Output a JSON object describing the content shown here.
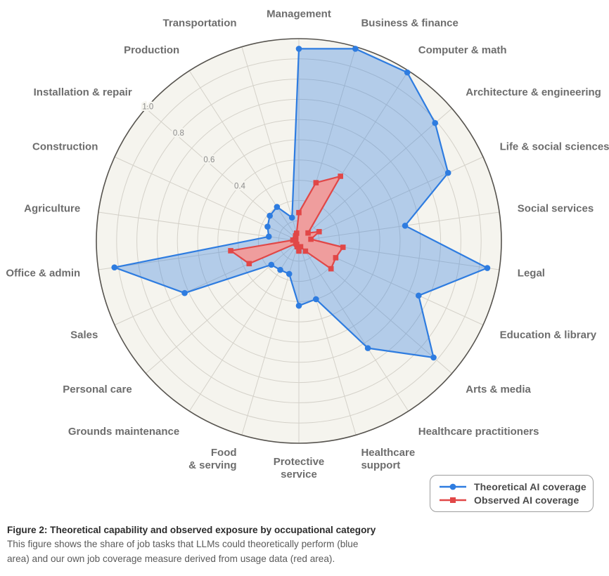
{
  "chart_data": {
    "type": "radar",
    "categories": [
      "Management",
      "Business & finance",
      "Computer & math",
      "Architecture & engineering",
      "Life & social sciences",
      "Social services",
      "Legal",
      "Education & library",
      "Arts & media",
      "Healthcare practitioners",
      "Healthcare support",
      "Protective service",
      "Food & serving",
      "Grounds maintenance",
      "Personal care",
      "Sales",
      "Office & admin",
      "Agriculture",
      "Construction",
      "Installation & repair",
      "Production",
      "Transportation"
    ],
    "series": [
      {
        "name": "Theoretical AI coverage",
        "marker": "circle",
        "color": "#2e7ce0",
        "fill": "rgba(46,124,224,0.33)",
        "values": [
          0.95,
          0.99,
          0.99,
          0.89,
          0.81,
          0.53,
          0.94,
          0.65,
          0.88,
          0.63,
          0.3,
          0.32,
          0.17,
          0.17,
          0.18,
          0.62,
          0.92,
          0.15,
          0.17,
          0.19,
          0.2,
          0.12
        ]
      },
      {
        "name": "Observed AI coverage",
        "marker": "square",
        "color": "#e14747",
        "fill": "#ef9d9d",
        "values": [
          0.14,
          0.3,
          0.38,
          0.06,
          0.11,
          0.06,
          0.22,
          0.2,
          0.21,
          0.06,
          0.03,
          0.05,
          0.03,
          0.02,
          0.02,
          0.27,
          0.34,
          0.03,
          0.02,
          0.02,
          0.03,
          0.04
        ]
      }
    ],
    "rmax": 1.0,
    "grid_interval": 0.1,
    "radial_tick_labels": [
      "0.4",
      "0.6",
      "0.8",
      "1.0"
    ],
    "radial_tick_values": [
      0.4,
      0.6,
      0.8,
      1.0
    ],
    "tick_label_ray_deg": 139.09,
    "grid_on": true,
    "legend_position": "bottom-right",
    "disc_color": "#f5f4ee",
    "grid_color": "#d4d1c9",
    "outer_ring_color": "#56534e",
    "category_label_color": "#6d6d6d",
    "tick_label_color": "#8c8c8c"
  },
  "legend": {
    "items": [
      {
        "label": "Theoretical AI coverage",
        "marker": "circle",
        "color": "#2e7ce0"
      },
      {
        "label": "Observed AI coverage",
        "marker": "square",
        "color": "#e14747"
      }
    ]
  },
  "caption": {
    "title": "Figure 2: Theoretical capability and observed exposure by occupational category",
    "body_line1": "This figure shows the share of job tasks that LLMs could theoretically perform (blue",
    "body_line2": "area) and our own job coverage measure derived from usage data (red area)."
  }
}
